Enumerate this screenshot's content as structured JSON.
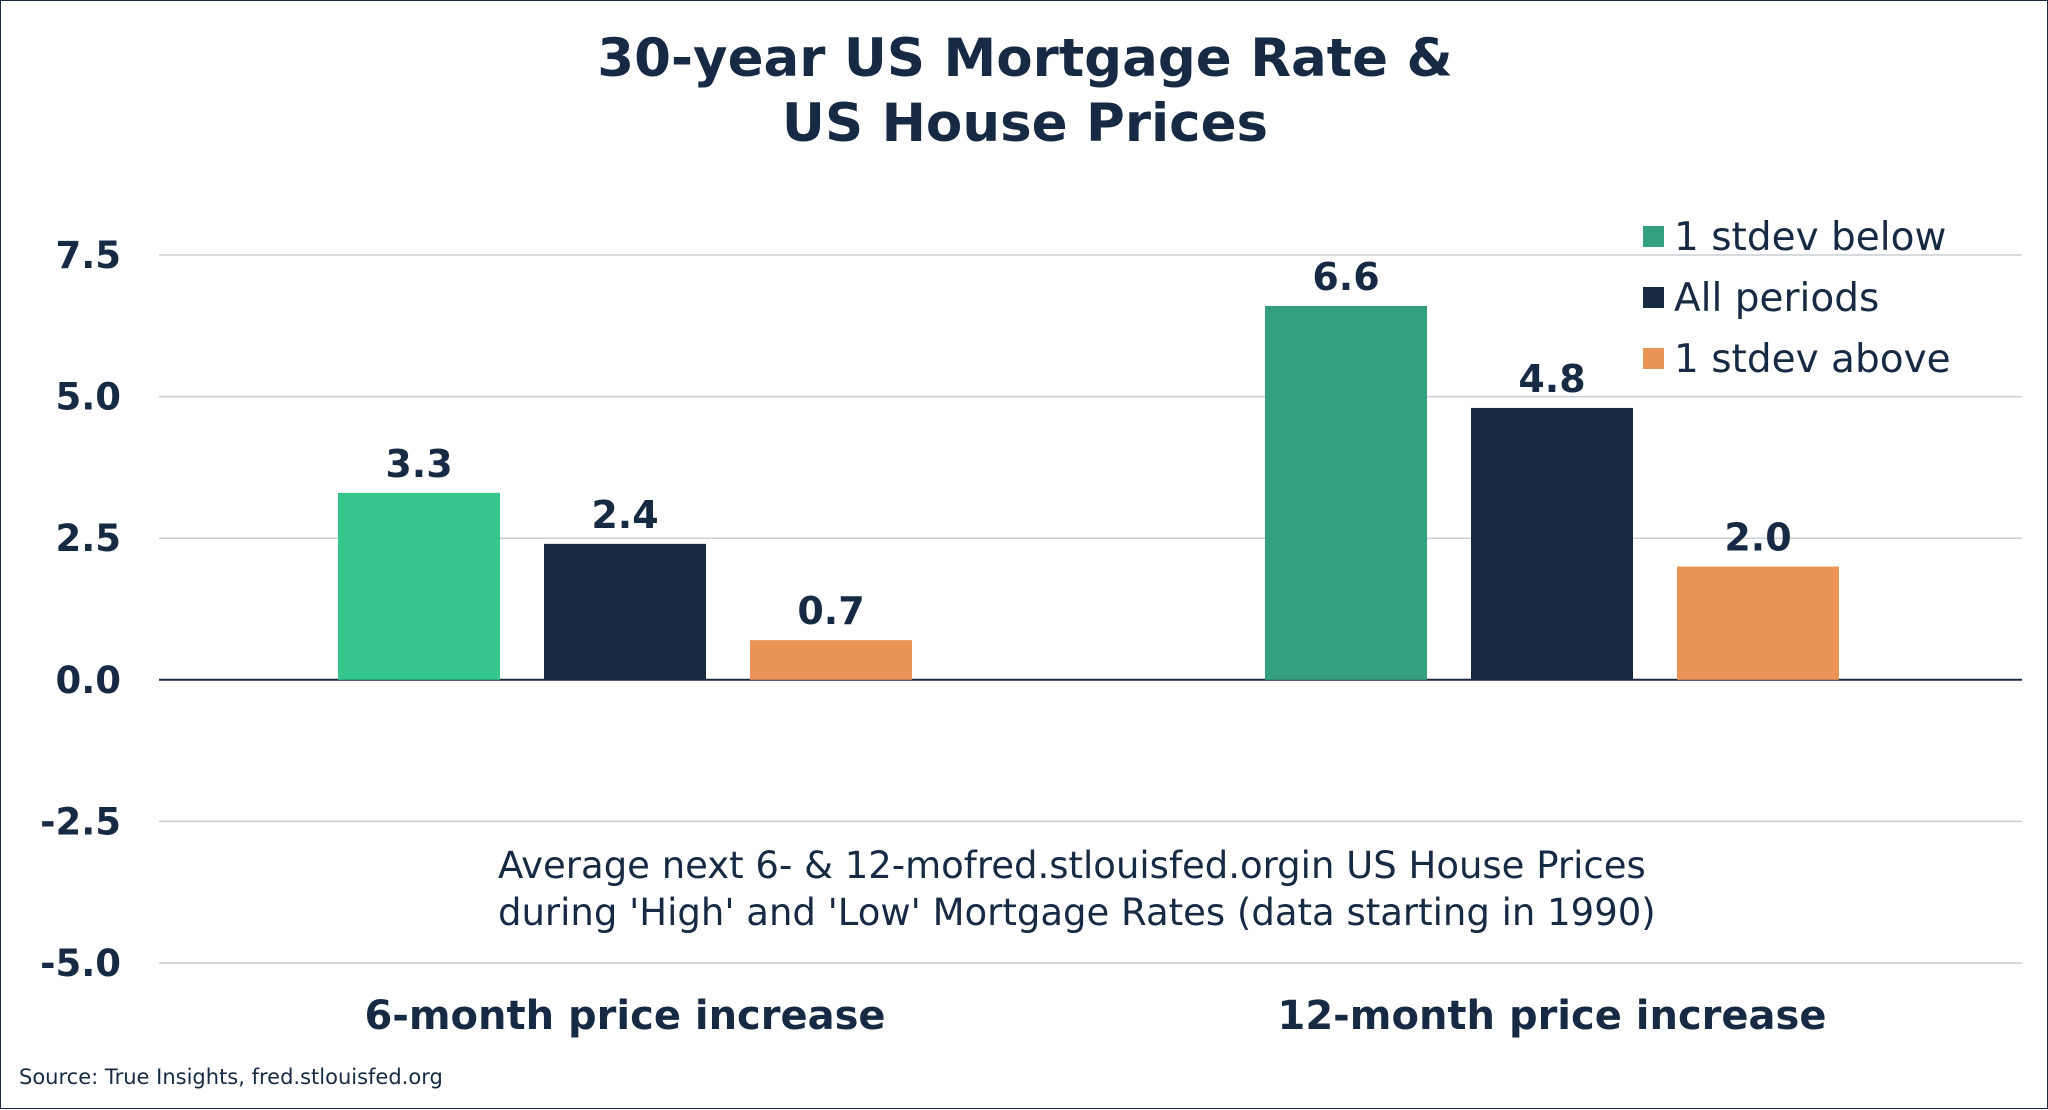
{
  "chart_data": {
    "type": "bar",
    "title_lines": [
      "30-year US Mortgage Rate &",
      "US House Prices"
    ],
    "categories": [
      "6-month price increase",
      "12-month price increase"
    ],
    "series": [
      {
        "name": "1 stdev below",
        "values": [
          3.3,
          6.6
        ]
      },
      {
        "name": "All periods",
        "values": [
          2.4,
          4.8
        ]
      },
      {
        "name": "1 stdev above",
        "values": [
          0.7,
          2.0
        ]
      }
    ],
    "data_labels": [
      [
        "3.3",
        "6.6"
      ],
      [
        "2.4",
        "4.8"
      ],
      [
        "0.7",
        "2.0"
      ]
    ],
    "ylim": [
      -5.0,
      7.5
    ],
    "yticks": [
      "7.5",
      "5.0",
      "2.5",
      "0.0",
      "-2.5",
      "-5.0"
    ],
    "ytick_values": [
      7.5,
      5.0,
      2.5,
      0.0,
      -2.5,
      -5.0
    ],
    "grid": true,
    "legend_position": "top-right",
    "annotation_lines": [
      "Average next 6- & 12-mofred.stlouisfed.orgin US House Prices",
      "during 'High' and 'Low' Mortgage Rates (data starting in 1990)"
    ],
    "source": "Source: True Insights, fred.stlouisfed.org"
  },
  "colors": {
    "series_per_category": [
      [
        "#34c68b",
        "#34a07f"
      ],
      [
        "#172a43",
        "#172a43"
      ],
      [
        "#ea9458",
        "#ea9458"
      ]
    ],
    "legend": [
      "#34a07f",
      "#172a43",
      "#ea9458"
    ],
    "text": "#172a43"
  }
}
